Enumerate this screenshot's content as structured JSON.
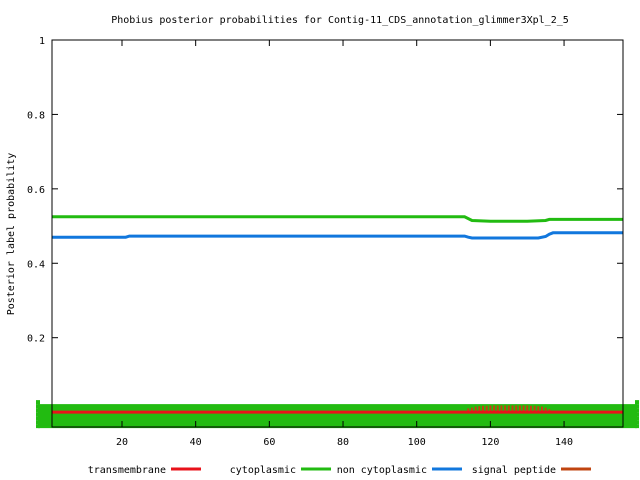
{
  "chart_data": {
    "type": "line",
    "title": "Phobius posterior probabilities for Contig-11_CDS_annotation_glimmer3Xpl_2_5",
    "xlabel": "",
    "ylabel": "Posterior label probability",
    "xlim": [
      1,
      156
    ],
    "ylim": [
      -0.04,
      1
    ],
    "x_ticks": [
      20,
      40,
      60,
      80,
      100,
      120,
      140
    ],
    "y_ticks": [
      0.2,
      0.4,
      0.6,
      0.8,
      1
    ],
    "y_tick_labels": [
      "0.2",
      "0.4",
      "0.6",
      "0.8",
      "1"
    ],
    "legend_position": "bottom",
    "series": [
      {
        "name": "transmembrane",
        "color": "#e8121a",
        "style": "line",
        "x": [
          1,
          156
        ],
        "y": [
          0.0,
          0.0
        ]
      },
      {
        "name": "cytoplasmic",
        "color": "#22bb11",
        "style": "impulse",
        "x": [
          1,
          156
        ],
        "y": [
          0.0,
          0.0
        ]
      },
      {
        "name": "non cytoplasmic",
        "color": "#22bb11",
        "style": "line",
        "x": [
          1,
          20,
          40,
          60,
          80,
          100,
          113,
          114,
          115,
          120,
          125,
          130,
          135,
          136,
          140,
          156
        ],
        "y": [
          0.525,
          0.525,
          0.525,
          0.525,
          0.525,
          0.525,
          0.525,
          0.52,
          0.515,
          0.513,
          0.513,
          0.513,
          0.515,
          0.518,
          0.518,
          0.518
        ]
      },
      {
        "name": "signal peptide",
        "color": "#1177dd",
        "style": "line",
        "x": [
          1,
          21,
          22,
          40,
          60,
          80,
          100,
          113,
          114,
          115,
          120,
          125,
          130,
          133,
          135,
          136,
          137,
          140,
          156
        ],
        "y": [
          0.47,
          0.47,
          0.473,
          0.473,
          0.473,
          0.473,
          0.473,
          0.473,
          0.47,
          0.468,
          0.468,
          0.468,
          0.468,
          0.468,
          0.472,
          0.478,
          0.482,
          0.482,
          0.482
        ]
      },
      {
        "name": "signal peptide",
        "color": "#c04410",
        "style": "impulse",
        "x": [
          114,
          115,
          116,
          117,
          118,
          119,
          120,
          121,
          122,
          123,
          124,
          125,
          126,
          127,
          128,
          129,
          130,
          131,
          132,
          133,
          134,
          135,
          136
        ],
        "y": [
          0.01,
          0.012,
          0.015,
          0.016,
          0.017,
          0.017,
          0.018,
          0.018,
          0.018,
          0.018,
          0.018,
          0.018,
          0.018,
          0.018,
          0.018,
          0.018,
          0.018,
          0.017,
          0.017,
          0.016,
          0.015,
          0.012,
          0.008
        ]
      }
    ],
    "legend": [
      {
        "name": "transmembrane",
        "color": "#e8121a"
      },
      {
        "name": "cytoplasmic",
        "color": "#22bb11"
      },
      {
        "name": "non cytoplasmic",
        "color": "#1177dd"
      },
      {
        "name": "signal peptide",
        "color": "#c04410"
      }
    ]
  }
}
